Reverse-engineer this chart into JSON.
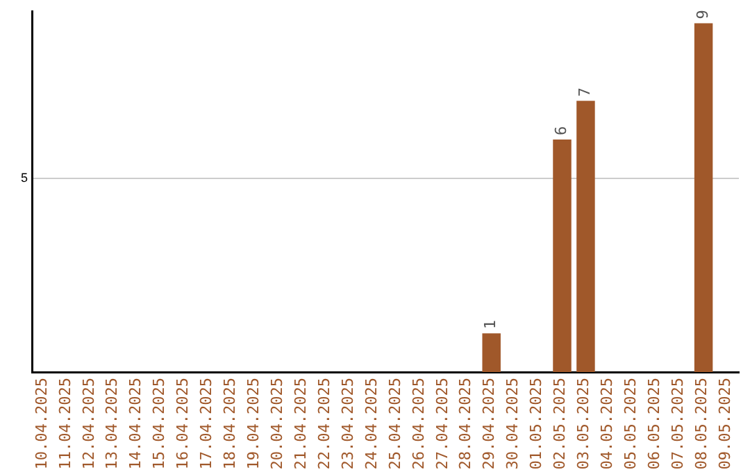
{
  "chart_data": {
    "type": "bar",
    "categories": [
      "10.04.2025",
      "11.04.2025",
      "12.04.2025",
      "13.04.2025",
      "14.04.2025",
      "15.04.2025",
      "16.04.2025",
      "17.04.2025",
      "18.04.2025",
      "19.04.2025",
      "20.04.2025",
      "21.04.2025",
      "22.04.2025",
      "23.04.2025",
      "24.04.2025",
      "25.04.2025",
      "26.04.2025",
      "27.04.2025",
      "28.04.2025",
      "29.04.2025",
      "30.04.2025",
      "01.05.2025",
      "02.05.2025",
      "03.05.2025",
      "04.05.2025",
      "05.05.2025",
      "06.05.2025",
      "07.05.2025",
      "08.05.2025",
      "09.05.2025"
    ],
    "values": [
      null,
      null,
      null,
      null,
      null,
      null,
      null,
      null,
      null,
      null,
      null,
      null,
      null,
      null,
      null,
      null,
      null,
      null,
      null,
      1,
      null,
      null,
      6,
      7,
      null,
      null,
      null,
      null,
      9,
      null
    ],
    "data_labels": true,
    "color": "#a0582a",
    "ylim": [
      0,
      9.3
    ],
    "yticks": [
      5
    ],
    "grid": "y"
  }
}
